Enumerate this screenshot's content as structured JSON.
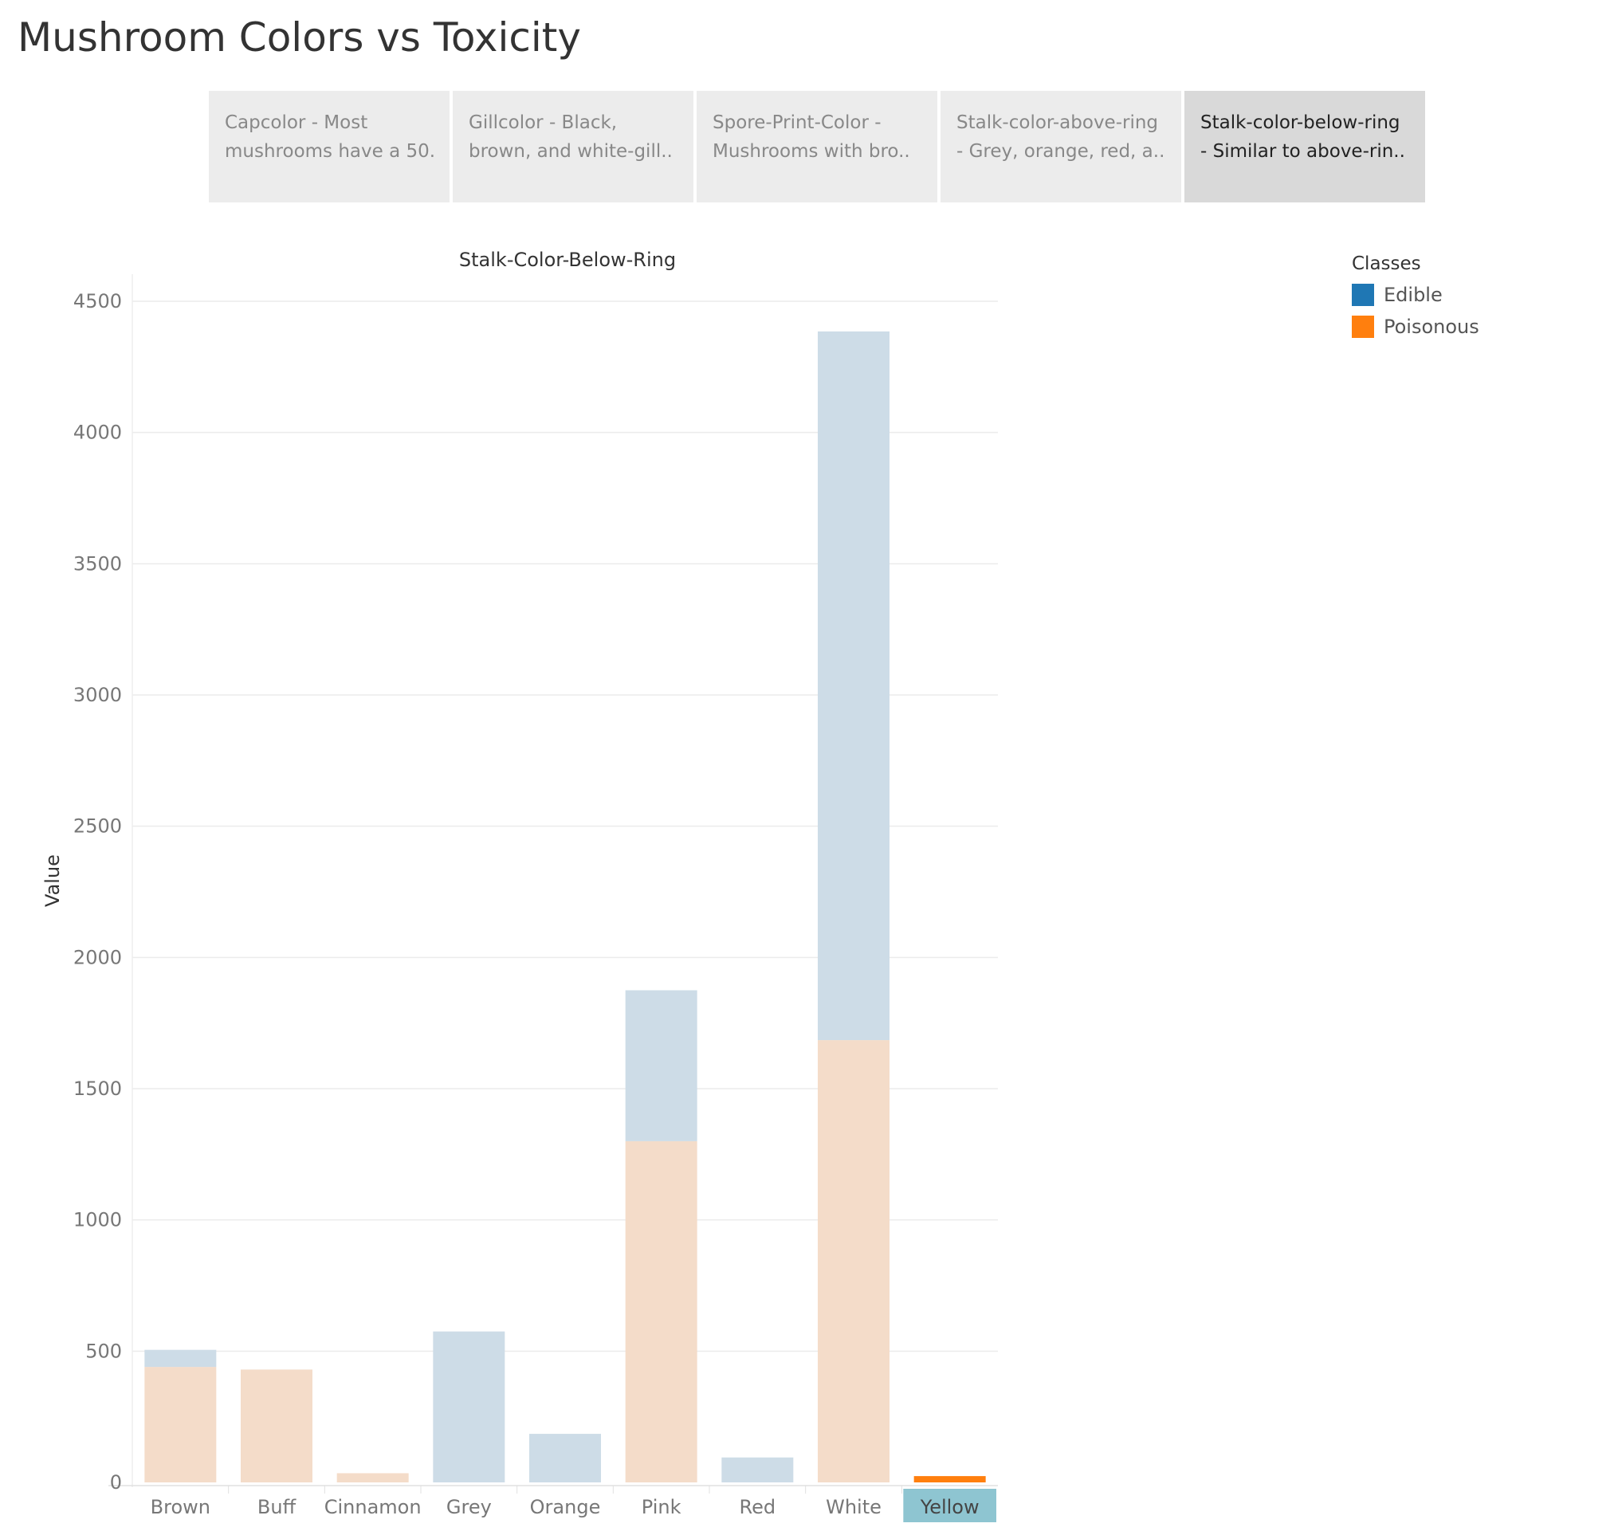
{
  "page": {
    "title": "Mushroom Colors vs Toxicity"
  },
  "tabs": [
    {
      "line1": "Capcolor - Most",
      "line2": "mushrooms have a 50..",
      "active": false
    },
    {
      "line1": "Gillcolor - Black,",
      "line2": "brown, and white-gill..",
      "active": false
    },
    {
      "line1": "Spore-Print-Color -",
      "line2": "Mushrooms with bro..",
      "active": false
    },
    {
      "line1": "Stalk-color-above-ring",
      "line2": "- Grey, orange, red, a..",
      "active": false
    },
    {
      "line1": "Stalk-color-below-ring",
      "line2": "- Similar to above-rin..",
      "active": true
    }
  ],
  "legend": {
    "title": "Classes",
    "items": [
      {
        "label": "Edible",
        "color": "#1f77b4"
      },
      {
        "label": "Poisonous",
        "color": "#ff7f0e"
      }
    ]
  },
  "colors": {
    "edible_faded": "#cddce7",
    "poisonous_faded": "#f4dcc9",
    "poisonous_full": "#ff7f0e",
    "highlight": "#8ec5d1",
    "grid": "#ececec",
    "axis_text": "#777777"
  },
  "chart_data": {
    "type": "bar",
    "stacked": true,
    "title": "Stalk-Color-Below-Ring",
    "xlabel": "",
    "ylabel": "Value",
    "ylim": [
      0,
      4600
    ],
    "yticks": [
      0,
      500,
      1000,
      1500,
      2000,
      2500,
      3000,
      3500,
      4000,
      4500
    ],
    "categories": [
      "Brown",
      "Buff",
      "Cinnamon",
      "Grey",
      "Orange",
      "Pink",
      "Red",
      "White",
      "Yellow"
    ],
    "series": [
      {
        "name": "Poisonous",
        "values": [
          440,
          430,
          35,
          0,
          0,
          1300,
          0,
          1685,
          24
        ]
      },
      {
        "name": "Edible",
        "values": [
          65,
          0,
          0,
          575,
          185,
          575,
          95,
          2700,
          0
        ]
      }
    ],
    "highlighted_category": "Yellow",
    "grid": true,
    "legend_position": "top-right"
  }
}
